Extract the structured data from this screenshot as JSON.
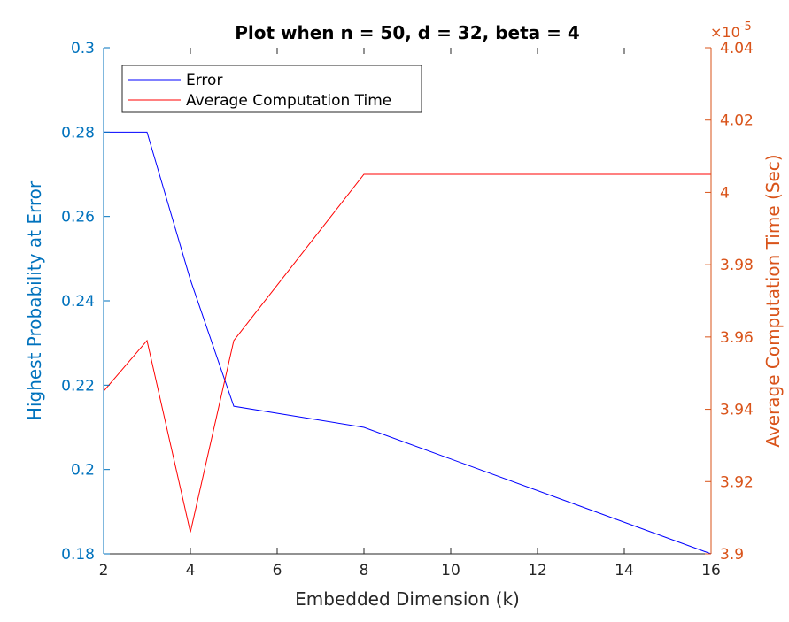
{
  "chart_data": {
    "type": "line",
    "title": "Plot when n = 50, d = 32, beta = 4",
    "xlabel": "Embedded Dimension (k)",
    "ylabel_left": "Highest Probability at Error",
    "ylabel_right": "Average Computation Time (Sec)",
    "right_axis_exponent": "×10",
    "right_axis_exponent_power": "-5",
    "xlim": [
      2,
      16
    ],
    "ylim_left": [
      0.18,
      0.3
    ],
    "ylim_right": [
      3.9e-05,
      4.04e-05
    ],
    "x_ticks": [
      "2",
      "4",
      "6",
      "8",
      "10",
      "12",
      "14",
      "16"
    ],
    "x_tick_values": [
      2,
      4,
      6,
      8,
      10,
      12,
      14,
      16
    ],
    "yleft_ticks": [
      "0.18",
      "0.2",
      "0.22",
      "0.24",
      "0.26",
      "0.28",
      "0.3"
    ],
    "yleft_tick_values": [
      0.18,
      0.2,
      0.22,
      0.24,
      0.26,
      0.28,
      0.3
    ],
    "yright_ticks": [
      "3.9",
      "3.92",
      "3.94",
      "3.96",
      "3.98",
      "4",
      "4.02",
      "4.04"
    ],
    "yright_tick_values": [
      3.9e-05,
      3.92e-05,
      3.94e-05,
      3.96e-05,
      3.98e-05,
      4e-05,
      4.02e-05,
      4.04e-05
    ],
    "legend_position": "top-left",
    "grid": false,
    "series": [
      {
        "name": "Error",
        "axis": "left",
        "color": "#0000ff",
        "x": [
          2,
          3,
          4,
          5,
          8,
          16
        ],
        "y": [
          0.28,
          0.28,
          0.245,
          0.215,
          0.21,
          0.18
        ]
      },
      {
        "name": "Average Computation Time",
        "axis": "right",
        "color": "#ff0000",
        "x": [
          2,
          3,
          4,
          5,
          8,
          16
        ],
        "y": [
          3.945e-05,
          3.959e-05,
          3.906e-05,
          3.959e-05,
          4.005e-05,
          4.005e-05
        ]
      }
    ]
  },
  "colors": {
    "left_axis": "#0072bd",
    "right_axis": "#d95319",
    "text": "#262626"
  }
}
